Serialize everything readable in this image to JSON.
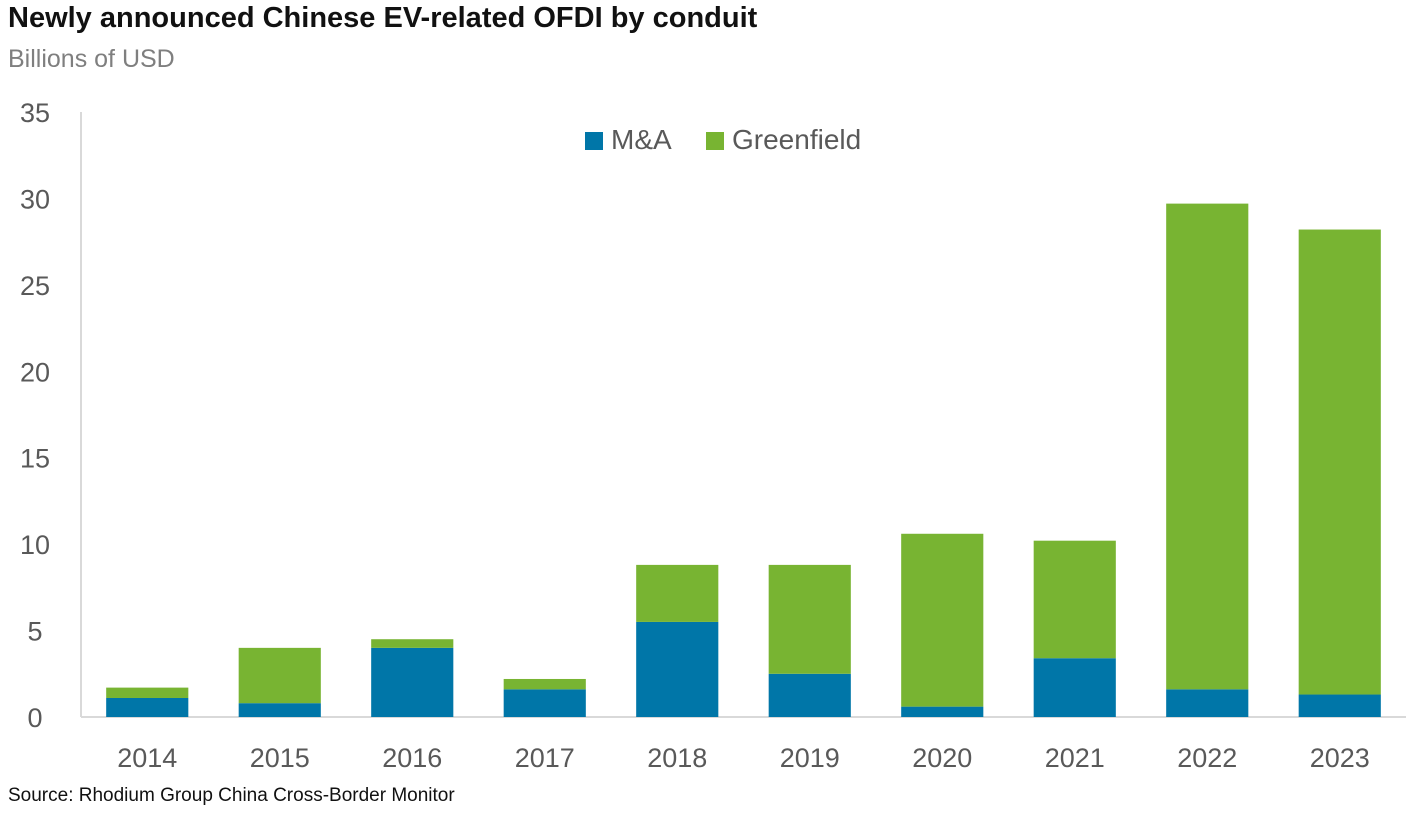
{
  "title": "Newly announced Chinese EV-related OFDI by conduit",
  "subtitle": "Billions of USD",
  "source": "Source: Rhodium Group China Cross-Border Monitor",
  "colors": {
    "ma": "#0076a8",
    "greenfield": "#78b432",
    "axis": "#d9d9d9",
    "tick_text": "#595959"
  },
  "chart_data": {
    "type": "bar",
    "stacked": true,
    "categories": [
      "2014",
      "2015",
      "2016",
      "2017",
      "2018",
      "2019",
      "2020",
      "2021",
      "2022",
      "2023"
    ],
    "series": [
      {
        "name": "M&A",
        "color": "#0076a8",
        "values": [
          1.1,
          0.8,
          4.0,
          1.6,
          5.5,
          2.5,
          0.6,
          3.4,
          1.6,
          1.3
        ]
      },
      {
        "name": "Greenfield",
        "color": "#78b432",
        "values": [
          0.6,
          3.2,
          0.5,
          0.6,
          3.3,
          6.3,
          10.0,
          6.8,
          28.1,
          26.9
        ]
      }
    ],
    "title": "Newly announced Chinese EV-related OFDI by conduit",
    "ylabel": "Billions of USD",
    "xlabel": "",
    "ylim": [
      0,
      35
    ],
    "yticks": [
      0,
      5,
      10,
      15,
      20,
      25,
      30,
      35
    ],
    "grid": false,
    "legend": "top-center"
  }
}
